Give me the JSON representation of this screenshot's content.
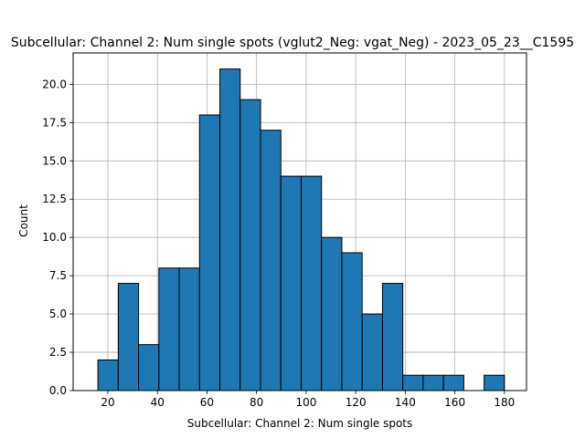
{
  "chart_data": {
    "type": "bar",
    "title": "Subcellular: Channel 2: Num single spots (vglut2_Neg: vgat_Neg) - 2023_05_23__C1595",
    "xlabel": "Subcellular: Channel 2: Num single spots",
    "ylabel": "Count",
    "xlim": [
      6.0,
      188.9
    ],
    "ylim": [
      0,
      22.05
    ],
    "grid": true,
    "x_ticks": [
      20,
      40,
      60,
      80,
      100,
      120,
      140,
      160,
      180
    ],
    "y_ticks": [
      0.0,
      2.5,
      5.0,
      7.5,
      10.0,
      12.5,
      15.0,
      17.5,
      20.0
    ],
    "y_tick_labels": [
      "0.0",
      "2.5",
      "5.0",
      "7.5",
      "10.0",
      "12.5",
      "15.0",
      "17.5",
      "20.0"
    ],
    "bar_color": "#1f77b4",
    "edge_color": "#000000",
    "bins": [
      {
        "x0": 16.0,
        "x1": 24.2,
        "count": 2
      },
      {
        "x0": 24.2,
        "x1": 32.4,
        "count": 7
      },
      {
        "x0": 32.4,
        "x1": 40.6,
        "count": 3
      },
      {
        "x0": 40.6,
        "x1": 48.8,
        "count": 8
      },
      {
        "x0": 48.8,
        "x1": 57.0,
        "count": 8
      },
      {
        "x0": 57.0,
        "x1": 65.2,
        "count": 18
      },
      {
        "x0": 65.2,
        "x1": 73.4,
        "count": 21
      },
      {
        "x0": 73.4,
        "x1": 81.6,
        "count": 19
      },
      {
        "x0": 81.6,
        "x1": 89.8,
        "count": 17
      },
      {
        "x0": 89.8,
        "x1": 98.0,
        "count": 14
      },
      {
        "x0": 98.0,
        "x1": 106.2,
        "count": 14
      },
      {
        "x0": 106.2,
        "x1": 114.4,
        "count": 10
      },
      {
        "x0": 114.4,
        "x1": 122.6,
        "count": 9
      },
      {
        "x0": 122.6,
        "x1": 130.8,
        "count": 5
      },
      {
        "x0": 130.8,
        "x1": 139.0,
        "count": 7
      },
      {
        "x0": 139.0,
        "x1": 147.2,
        "count": 1
      },
      {
        "x0": 147.2,
        "x1": 155.4,
        "count": 1
      },
      {
        "x0": 155.4,
        "x1": 163.6,
        "count": 1
      },
      {
        "x0": 163.6,
        "x1": 171.8,
        "count": 0
      },
      {
        "x0": 171.8,
        "x1": 180.0,
        "count": 1
      }
    ]
  }
}
